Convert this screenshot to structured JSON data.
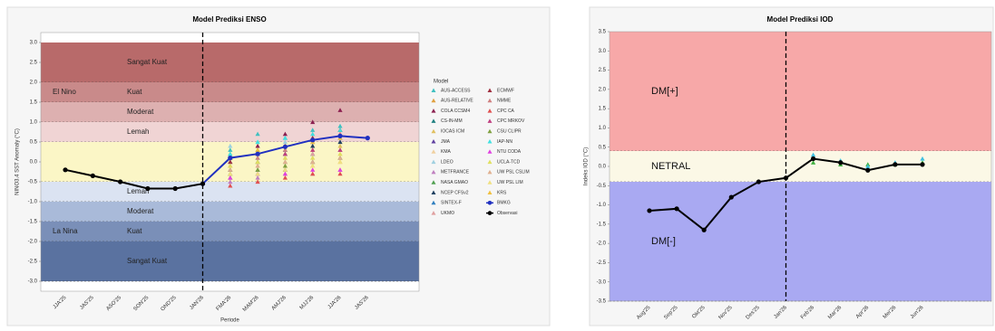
{
  "chart_data": [
    {
      "type": "line",
      "title": "Model Prediksi ENSO",
      "ylabel": "NINO3.4 SST Anomaly (°C)",
      "xlabel": "Periode",
      "categories": [
        "JJA'25",
        "JAS'25",
        "ASO'25",
        "SON'25",
        "OND'25",
        "JAN'26",
        "FMA'26",
        "MAM'26",
        "AMJ'26",
        "MJJ'26",
        "JJA'26",
        "JAS'26"
      ],
      "divider": "JAN'26",
      "ylim": [
        -3.25,
        3.25
      ],
      "yticks": [
        {
          "value": 3,
          "label": "3.0"
        },
        {
          "value": 2.5,
          "label": "2.5"
        },
        {
          "value": 2,
          "label": "2.0"
        },
        {
          "value": 1.5,
          "label": "1.5"
        },
        {
          "value": 1,
          "label": "1.0"
        },
        {
          "value": 0.5,
          "label": "0.5"
        },
        {
          "value": 0,
          "label": "0.0"
        },
        {
          "value": -0.5,
          "label": "-0.5"
        },
        {
          "value": -1,
          "label": "-1.0"
        },
        {
          "value": -1.5,
          "label": "-1.5"
        },
        {
          "value": -2,
          "label": "-2.0"
        },
        {
          "value": -2.5,
          "label": "-2.5"
        },
        {
          "value": -3,
          "label": "-3.0"
        }
      ],
      "bands": [
        {
          "from": 2,
          "to": 3,
          "label": "Sangat Kuat",
          "color": "#b86a6a"
        },
        {
          "from": 1.5,
          "to": 2,
          "label": "Kuat",
          "group": "El Nino",
          "color": "#c98a8a"
        },
        {
          "from": 1,
          "to": 1.5,
          "label": "Moderat",
          "color": "#ddb0b0"
        },
        {
          "from": 0.5,
          "to": 1,
          "label": "Lemah",
          "color": "#f0d4d4"
        },
        {
          "from": -0.5,
          "to": 0.5,
          "color": "#fbf6c6"
        },
        {
          "from": -1,
          "to": -0.5,
          "label": "Lemah",
          "color": "#dbe3f2"
        },
        {
          "from": -1.5,
          "to": -1,
          "label": "Moderat",
          "color": "#a9bad9"
        },
        {
          "from": -2,
          "to": -1.5,
          "label": "Kuat",
          "group": "La Nina",
          "color": "#7a8fb8"
        },
        {
          "from": -3,
          "to": -2,
          "label": "Sangat Kuat",
          "color": "#5a72a0"
        }
      ],
      "legend": "right",
      "legend_title": "Model",
      "series": [
        {
          "name": "AUS-ACCESS",
          "color": "#40c0c0",
          "marker": "triangle",
          "values": [
            null,
            null,
            null,
            null,
            null,
            null,
            0.3,
            0.7,
            0.6,
            0.8,
            0.9,
            null
          ]
        },
        {
          "name": "AUS-RELATIVE",
          "color": "#e0a040",
          "marker": "triangle",
          "values": [
            null,
            null,
            null,
            null,
            null,
            null,
            -0.1,
            0.0,
            -0.2,
            -0.1,
            0.0,
            null
          ]
        },
        {
          "name": "COLA CCSM4",
          "color": "#8b2050",
          "marker": "triangle",
          "values": [
            null,
            null,
            null,
            null,
            null,
            null,
            0.1,
            0.4,
            0.7,
            1.0,
            1.3,
            null
          ]
        },
        {
          "name": "CS-IN-MM",
          "color": "#208080",
          "marker": "triangle",
          "values": [
            null,
            null,
            null,
            null,
            null,
            null,
            -0.3,
            -0.2,
            0.0,
            0.2,
            0.3,
            null
          ]
        },
        {
          "name": "IOCAS ICM",
          "color": "#e0c060",
          "marker": "triangle",
          "values": [
            null,
            null,
            null,
            null,
            null,
            null,
            0.0,
            0.2,
            0.3,
            0.3,
            0.4,
            null
          ]
        },
        {
          "name": "JMA",
          "color": "#6040a0",
          "marker": "triangle",
          "values": [
            null,
            null,
            null,
            null,
            null,
            null,
            -0.4,
            -0.3,
            -0.2,
            0.0,
            0.1,
            null
          ]
        },
        {
          "name": "KMA",
          "color": "#f0d0a0",
          "marker": "triangle",
          "values": [
            null,
            null,
            null,
            null,
            null,
            null,
            -0.2,
            -0.1,
            0.0,
            0.1,
            0.2,
            null
          ]
        },
        {
          "name": "LDEO",
          "color": "#a0d0e0",
          "marker": "triangle",
          "values": [
            null,
            null,
            null,
            null,
            null,
            null,
            0.4,
            0.5,
            0.5,
            0.6,
            0.7,
            null
          ]
        },
        {
          "name": "METFRANCE",
          "color": "#c080c0",
          "marker": "triangle",
          "values": [
            null,
            null,
            null,
            null,
            null,
            null,
            -0.5,
            -0.4,
            -0.3,
            -0.3,
            -0.2,
            null
          ]
        },
        {
          "name": "NASA GMAO",
          "color": "#50a050",
          "marker": "triangle",
          "values": [
            null,
            null,
            null,
            null,
            null,
            null,
            0.2,
            0.3,
            0.4,
            0.6,
            0.8,
            null
          ]
        },
        {
          "name": "NCEP CFSv2",
          "color": "#204060",
          "marker": "triangle",
          "values": [
            null,
            null,
            null,
            null,
            null,
            null,
            -0.2,
            0.0,
            0.2,
            0.4,
            0.5,
            null
          ]
        },
        {
          "name": "SINTEX-F",
          "color": "#3080c0",
          "marker": "triangle",
          "values": [
            null,
            null,
            null,
            null,
            null,
            null,
            0.0,
            0.1,
            0.3,
            0.5,
            0.6,
            null
          ]
        },
        {
          "name": "UKMO",
          "color": "#e0a0a0",
          "marker": "triangle",
          "values": [
            null,
            null,
            null,
            null,
            null,
            null,
            -0.3,
            -0.1,
            0.1,
            0.2,
            0.3,
            null
          ]
        },
        {
          "name": "ECMWF",
          "color": "#a03040",
          "marker": "triangle",
          "values": [
            null,
            null,
            null,
            null,
            null,
            null,
            0.0,
            0.2,
            0.4,
            0.6,
            0.8,
            null
          ]
        },
        {
          "name": "NMME",
          "color": "#d08080",
          "marker": "triangle",
          "values": [
            null,
            null,
            null,
            null,
            null,
            null,
            -0.1,
            0.1,
            0.3,
            0.5,
            0.7,
            null
          ]
        },
        {
          "name": "CPC CA",
          "color": "#e05050",
          "marker": "triangle",
          "values": [
            null,
            null,
            null,
            null,
            null,
            null,
            -0.6,
            -0.5,
            -0.4,
            -0.3,
            -0.3,
            null
          ]
        },
        {
          "name": "CPC MRKOV",
          "color": "#c04080",
          "marker": "triangle",
          "values": [
            null,
            null,
            null,
            null,
            null,
            null,
            0.1,
            0.2,
            0.2,
            0.3,
            0.3,
            null
          ]
        },
        {
          "name": "CSU CLIPR",
          "color": "#80a040",
          "marker": "triangle",
          "values": [
            null,
            null,
            null,
            null,
            null,
            null,
            -0.3,
            -0.2,
            -0.1,
            0.0,
            0.1,
            null
          ]
        },
        {
          "name": "IAP-NN",
          "color": "#40e0e0",
          "marker": "triangle",
          "values": [
            null,
            null,
            null,
            null,
            null,
            null,
            0.2,
            0.5,
            0.6,
            0.7,
            0.8,
            null
          ]
        },
        {
          "name": "NTU CODA",
          "color": "#e040e0",
          "marker": "triangle",
          "values": [
            null,
            null,
            null,
            null,
            null,
            null,
            -0.4,
            -0.3,
            -0.3,
            -0.2,
            -0.2,
            null
          ]
        },
        {
          "name": "UCLA-TCD",
          "color": "#e0e060",
          "marker": "triangle",
          "values": [
            null,
            null,
            null,
            null,
            null,
            null,
            -0.1,
            0.0,
            0.1,
            0.1,
            0.2,
            null
          ]
        },
        {
          "name": "UW PSL CSLIM",
          "color": "#e0b090",
          "marker": "triangle",
          "values": [
            null,
            null,
            null,
            null,
            null,
            null,
            -0.2,
            -0.1,
            0.0,
            0.0,
            0.1,
            null
          ]
        },
        {
          "name": "UW PSL LIM",
          "color": "#f0e080",
          "marker": "triangle",
          "values": [
            null,
            null,
            null,
            null,
            null,
            null,
            -0.3,
            -0.3,
            -0.2,
            -0.1,
            0.0,
            null
          ]
        },
        {
          "name": "KRS",
          "color": "#f0c040",
          "marker": "triangle",
          "values": [
            null,
            null,
            null,
            null,
            null,
            null,
            0.1,
            0.3,
            0.4,
            0.5,
            0.6,
            null
          ]
        },
        {
          "name": "BMKG",
          "color": "#2030c0",
          "marker": "circle",
          "line": true,
          "values": [
            null,
            null,
            null,
            null,
            null,
            -0.55,
            0.1,
            0.2,
            0.38,
            0.55,
            0.65,
            0.6
          ]
        },
        {
          "name": "Observasi",
          "color": "#000000",
          "marker": "circle",
          "line": true,
          "values": [
            -0.2,
            -0.35,
            -0.5,
            -0.67,
            -0.67,
            -0.55,
            null,
            null,
            null,
            null,
            null,
            null
          ]
        }
      ]
    },
    {
      "type": "line",
      "title": "Model Prediksi IOD",
      "ylabel": "Indeks IOD (°C)",
      "categories": [
        "Aug'25",
        "Sep'25",
        "Okt'25",
        "Nov'25",
        "Des'25",
        "Jan'26",
        "Feb'26",
        "Mar'26",
        "Apr'26",
        "Mei'26",
        "Jun'26"
      ],
      "divider": "Jan'26",
      "ylim": [
        -3.5,
        3.5
      ],
      "yticks": [
        {
          "value": 3.5,
          "label": "3.5"
        },
        {
          "value": 3,
          "label": "3.0"
        },
        {
          "value": 2.5,
          "label": "2.5"
        },
        {
          "value": 2,
          "label": "2.0"
        },
        {
          "value": 1.5,
          "label": "1.5"
        },
        {
          "value": 1,
          "label": "1.0"
        },
        {
          "value": 0.5,
          "label": "0.5"
        },
        {
          "value": 0,
          "label": "0.0"
        },
        {
          "value": -0.5,
          "label": "-0.5"
        },
        {
          "value": -1,
          "label": "-1.0"
        },
        {
          "value": -1.5,
          "label": "-1.5"
        },
        {
          "value": -2,
          "label": "-2.0"
        },
        {
          "value": -2.5,
          "label": "-2.5"
        },
        {
          "value": -3,
          "label": "-3.0"
        },
        {
          "value": -3.5,
          "label": "-3.5"
        }
      ],
      "bands": [
        {
          "from": 0.4,
          "to": 3.5,
          "label": "DM[+]",
          "color": "#f7a8a8"
        },
        {
          "from": -0.4,
          "to": 0.4,
          "label": "NETRAL",
          "color": "#fbf8e6"
        },
        {
          "from": -3.5,
          "to": -0.4,
          "label": "DM[-]",
          "color": "#a9a9f2"
        }
      ],
      "series": [
        {
          "color": "#40b040",
          "marker": "triangle",
          "values": [
            null,
            null,
            null,
            null,
            null,
            null,
            0.1,
            0.05,
            0.05,
            0.05,
            0.1
          ]
        },
        {
          "color": "#40c0e0",
          "marker": "triangle",
          "values": [
            null,
            null,
            null,
            null,
            null,
            null,
            0.3,
            0.15,
            0.0,
            0.1,
            0.2
          ]
        },
        {
          "color": "#000000",
          "marker": "circle",
          "line": true,
          "values": [
            -1.15,
            -1.1,
            -1.65,
            -0.8,
            -0.4,
            -0.3,
            0.2,
            0.1,
            -0.1,
            0.05,
            0.05
          ]
        }
      ]
    }
  ]
}
